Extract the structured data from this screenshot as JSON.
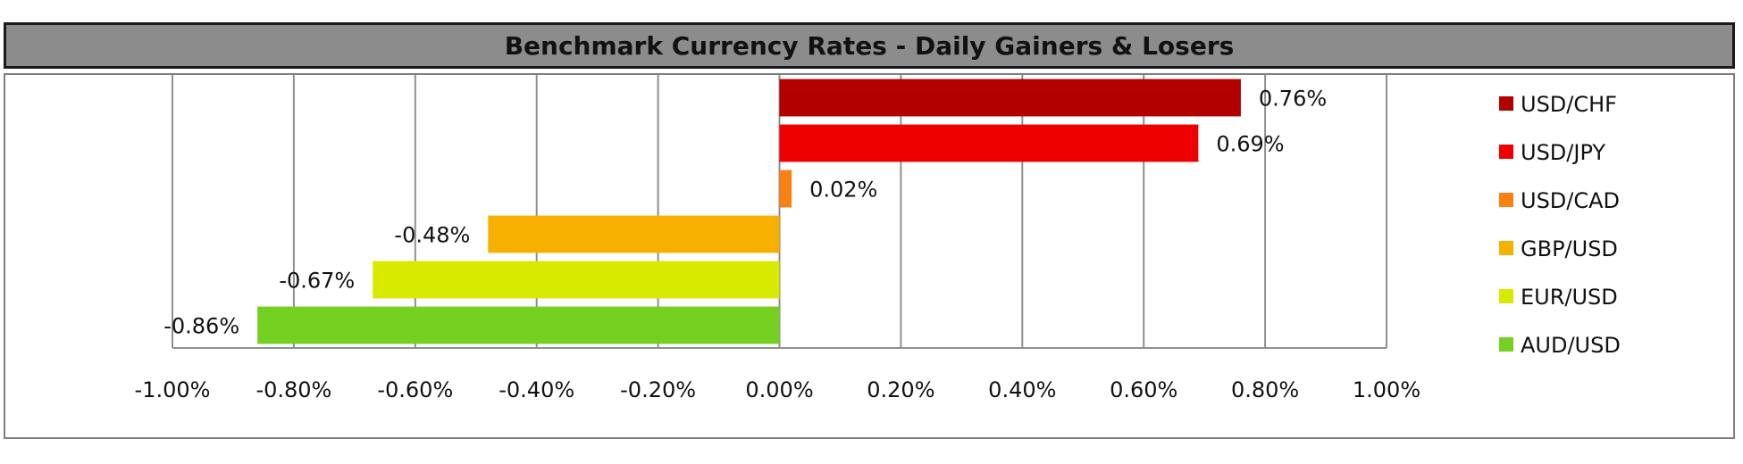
{
  "chart_data": {
    "type": "bar",
    "orientation": "horizontal",
    "title": "Benchmark Currency Rates - Daily Gainers & Losers",
    "categories": [
      "USD/CHF",
      "USD/JPY",
      "USD/CAD",
      "GBP/USD",
      "EUR/USD",
      "AUD/USD"
    ],
    "values": [
      0.76,
      0.69,
      0.02,
      -0.48,
      -0.67,
      -0.86
    ],
    "data_labels": [
      "0.76%",
      "0.69%",
      "0.02%",
      "-0.48%",
      "-0.67%",
      "-0.86%"
    ],
    "colors": [
      "#b20000",
      "#ee0000",
      "#f98012",
      "#f5b000",
      "#d8ea00",
      "#74d122"
    ],
    "xlim": [
      -1.0,
      1.0
    ],
    "x_ticks": [
      -1.0,
      -0.8,
      -0.6,
      -0.4,
      -0.2,
      0.0,
      0.2,
      0.4,
      0.6,
      0.8,
      1.0
    ],
    "x_tick_labels": [
      "-1.00%",
      "-0.80%",
      "-0.60%",
      "-0.40%",
      "-0.20%",
      "0.00%",
      "0.20%",
      "0.40%",
      "0.60%",
      "0.80%",
      "1.00%"
    ],
    "grid": "vertical",
    "legend_position": "right",
    "legend": [
      "USD/CHF",
      "USD/JPY",
      "USD/CAD",
      "GBP/USD",
      "EUR/USD",
      "AUD/USD"
    ]
  }
}
